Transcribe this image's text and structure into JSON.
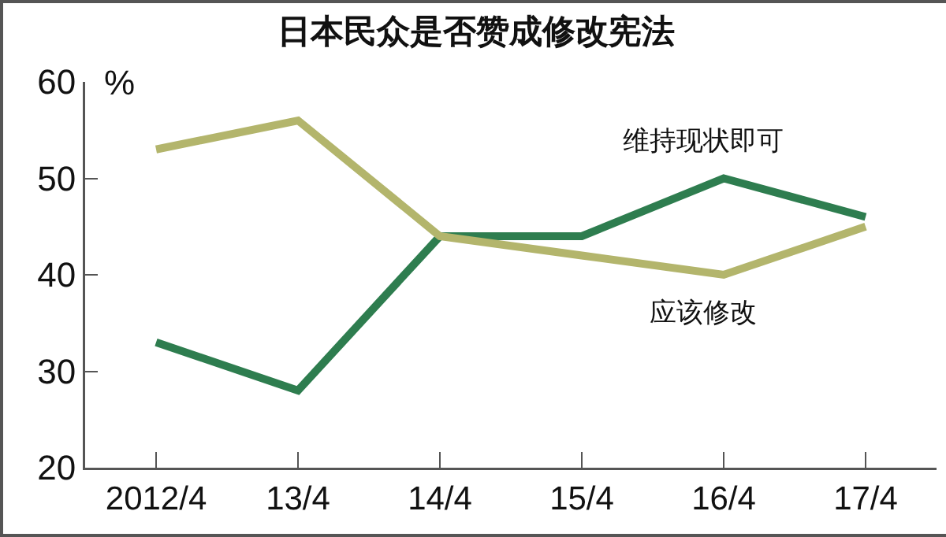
{
  "chart_data": {
    "type": "line",
    "title": "日本民众是否赞成修改宪法",
    "ylabel": "%",
    "categories": [
      "2012/4",
      "13/4",
      "14/4",
      "15/4",
      "16/4",
      "17/4"
    ],
    "series": [
      {
        "name": "维持现状即可",
        "color": "#2e7d4f",
        "values": [
          33,
          28,
          44,
          44,
          50,
          46
        ]
      },
      {
        "name": "应该修改",
        "color": "#b3b56c",
        "values": [
          53,
          56,
          44,
          42,
          40,
          45
        ]
      }
    ],
    "ylim": [
      20,
      60
    ],
    "yticks": [
      20,
      30,
      40,
      50,
      60
    ],
    "grid": false,
    "legend": false,
    "marker": "none",
    "line_style": "solid"
  }
}
